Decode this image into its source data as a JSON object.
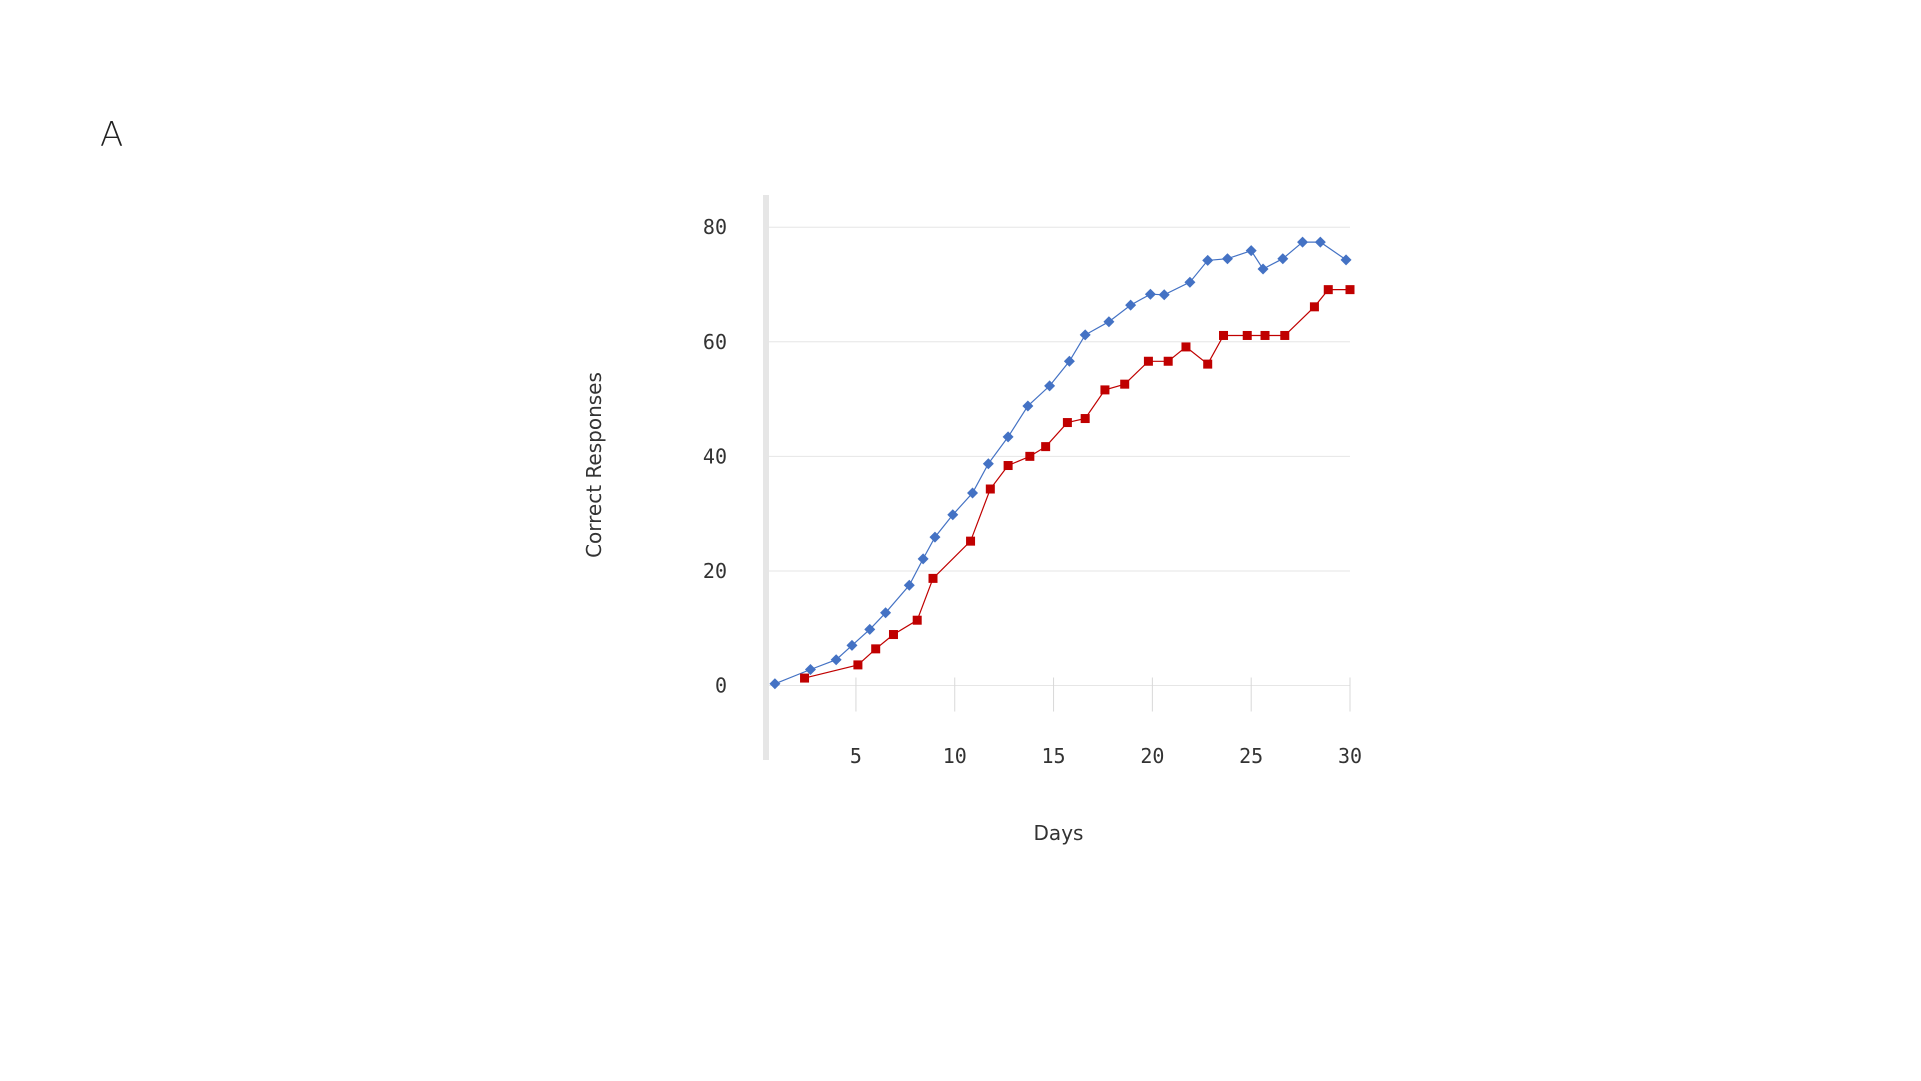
{
  "panel_label": "A",
  "chart_data": {
    "type": "line",
    "xlabel": "Days",
    "ylabel": "Correct Responses",
    "xlim": [
      0.5,
      30
    ],
    "ylim": [
      -13,
      83
    ],
    "x_ticks": [
      5,
      10,
      15,
      20,
      25,
      30
    ],
    "y_ticks": [
      0,
      20,
      40,
      60,
      80
    ],
    "grid": "horizontal",
    "colors": {
      "blue": "#4472C4",
      "red": "#C00000",
      "grid": "#e6e6e6",
      "axis": "#e6e6e6"
    },
    "series": [
      {
        "marker": "diamond",
        "color": "#4472C4",
        "x": [
          0.9,
          2.7,
          4.0,
          4.8,
          5.7,
          6.5,
          7.7,
          8.4,
          9.0,
          9.9,
          10.9,
          11.7,
          12.7,
          13.7,
          14.8,
          15.8,
          16.6,
          17.8,
          18.9,
          19.9,
          20.6,
          21.9,
          22.8,
          23.8,
          25.0,
          25.6,
          26.6,
          27.6,
          28.5,
          29.8
        ],
        "y": [
          0.3,
          2.8,
          4.5,
          7.0,
          9.8,
          12.7,
          17.5,
          22.1,
          25.9,
          29.8,
          33.6,
          38.7,
          43.4,
          48.8,
          52.3,
          56.6,
          61.2,
          63.5,
          66.4,
          68.3,
          68.2,
          70.4,
          74.2,
          74.5,
          75.9,
          72.7,
          74.5,
          77.4,
          77.4,
          74.3
        ]
      },
      {
        "marker": "square",
        "color": "#C00000",
        "x": [
          2.4,
          5.1,
          6.0,
          6.9,
          8.1,
          8.9,
          10.8,
          11.8,
          12.7,
          13.8,
          14.6,
          15.7,
          16.6,
          17.6,
          18.6,
          19.8,
          20.8,
          21.7,
          22.8,
          23.6,
          24.8,
          25.7,
          26.7,
          28.2,
          28.9,
          30.0
        ],
        "y": [
          1.3,
          3.6,
          6.4,
          8.9,
          11.4,
          18.7,
          25.2,
          34.3,
          38.4,
          40.0,
          41.7,
          45.9,
          46.6,
          51.6,
          52.6,
          56.6,
          56.6,
          59.1,
          56.1,
          61.1,
          61.1,
          61.1,
          61.1,
          66.1,
          69.1,
          69.1
        ]
      }
    ]
  }
}
